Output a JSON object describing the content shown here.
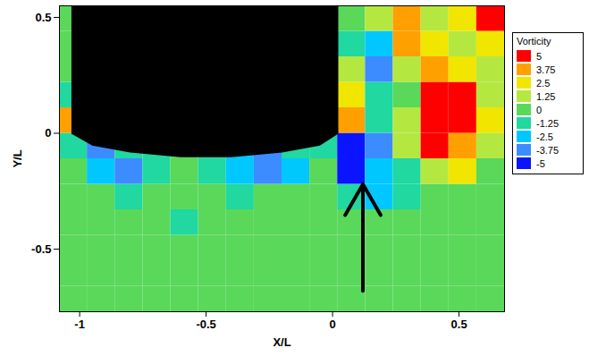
{
  "chart_data": {
    "type": "heatmap",
    "x_label": "X/L",
    "y_label": "Y/L",
    "xlim": [
      -1.08,
      0.68
    ],
    "ylim": [
      -0.77,
      0.55
    ],
    "xticks": [
      -1,
      -0.5,
      0,
      0.5
    ],
    "yticks": [
      -0.5,
      0,
      0.5
    ],
    "cells": {
      "x": [
        -1.025,
        -0.915,
        -0.805,
        -0.695,
        -0.585,
        -0.475,
        -0.365,
        -0.255,
        -0.145,
        -0.035,
        0.075,
        0.185,
        0.295,
        0.405,
        0.515,
        0.625
      ],
      "y": [
        -0.715,
        -0.605,
        -0.495,
        -0.385,
        -0.275,
        -0.165,
        -0.055,
        0.055,
        0.165,
        0.275,
        0.385,
        0.495
      ],
      "values": [
        [
          0,
          0,
          0,
          0,
          0,
          0,
          0,
          0,
          0,
          0,
          0,
          0,
          0,
          0,
          0,
          0
        ],
        [
          0,
          0,
          0,
          0,
          0,
          0,
          0,
          0,
          0,
          0,
          0,
          0,
          0,
          0,
          0,
          0
        ],
        [
          0,
          0,
          0,
          0,
          0,
          0,
          0,
          0,
          0,
          0,
          0,
          0,
          0,
          0,
          0,
          0
        ],
        [
          0,
          0,
          0,
          0,
          -1.25,
          0,
          0,
          0,
          0,
          0,
          0,
          0,
          0,
          0,
          0,
          0
        ],
        [
          0,
          0,
          -1.25,
          0,
          0,
          0,
          -1.25,
          0,
          0,
          0,
          -1.25,
          -2.5,
          -1.25,
          0,
          0,
          0
        ],
        [
          0,
          -2.5,
          -3.75,
          -1.25,
          0,
          -1.25,
          -2.5,
          -3.75,
          -2.5,
          0,
          -5,
          -2.5,
          -1.25,
          1.25,
          2.5,
          0
        ],
        [
          -1.25,
          -3.75,
          -1.25,
          -1.25,
          0,
          -1.25,
          -2.5,
          -3.75,
          -1.25,
          -1.25,
          -5,
          -3.75,
          1.25,
          5,
          3.75,
          1.25
        ],
        [
          3.75,
          null,
          null,
          null,
          null,
          null,
          null,
          null,
          null,
          null,
          3.75,
          -1.25,
          1.25,
          5,
          5,
          2.5
        ],
        [
          -1.25,
          null,
          null,
          null,
          null,
          null,
          null,
          null,
          null,
          null,
          2.5,
          -1.25,
          0,
          5,
          5,
          1.25
        ],
        [
          0,
          null,
          null,
          null,
          null,
          null,
          null,
          null,
          null,
          null,
          1.25,
          -3.75,
          1.25,
          3.75,
          2.5,
          1.25
        ],
        [
          0,
          null,
          null,
          null,
          null,
          null,
          null,
          null,
          null,
          null,
          -1.25,
          -2.5,
          3.75,
          2.5,
          1.25,
          2.5
        ],
        [
          0,
          null,
          null,
          null,
          null,
          null,
          null,
          null,
          null,
          null,
          0,
          1.25,
          3.75,
          1.25,
          2.5,
          5
        ]
      ]
    },
    "colorbar": {
      "title": "Vorticity",
      "range": [
        -5,
        5
      ],
      "ticks": [
        -5,
        -3.75,
        -2.5,
        -1.25,
        0,
        1.25,
        2.5,
        3.75,
        5
      ],
      "colors": [
        "#0a14ff",
        "#3c8cff",
        "#00c8ff",
        "#20d8a0",
        "#5ad85a",
        "#b4e840",
        "#f0e600",
        "#ffa000",
        "#ff0000"
      ]
    },
    "body_outline": {
      "x": [
        -1.03,
        -1.03,
        -0.95,
        -0.8,
        -0.6,
        -0.4,
        -0.2,
        -0.05,
        0.02,
        0.02,
        -1.03
      ],
      "y": [
        0.55,
        0.0,
        -0.05,
        -0.08,
        -0.1,
        -0.1,
        -0.08,
        -0.05,
        0.0,
        0.55,
        0.55
      ]
    },
    "arrow": {
      "x": 0.12,
      "y_start": -0.68,
      "y_end": -0.22
    }
  }
}
